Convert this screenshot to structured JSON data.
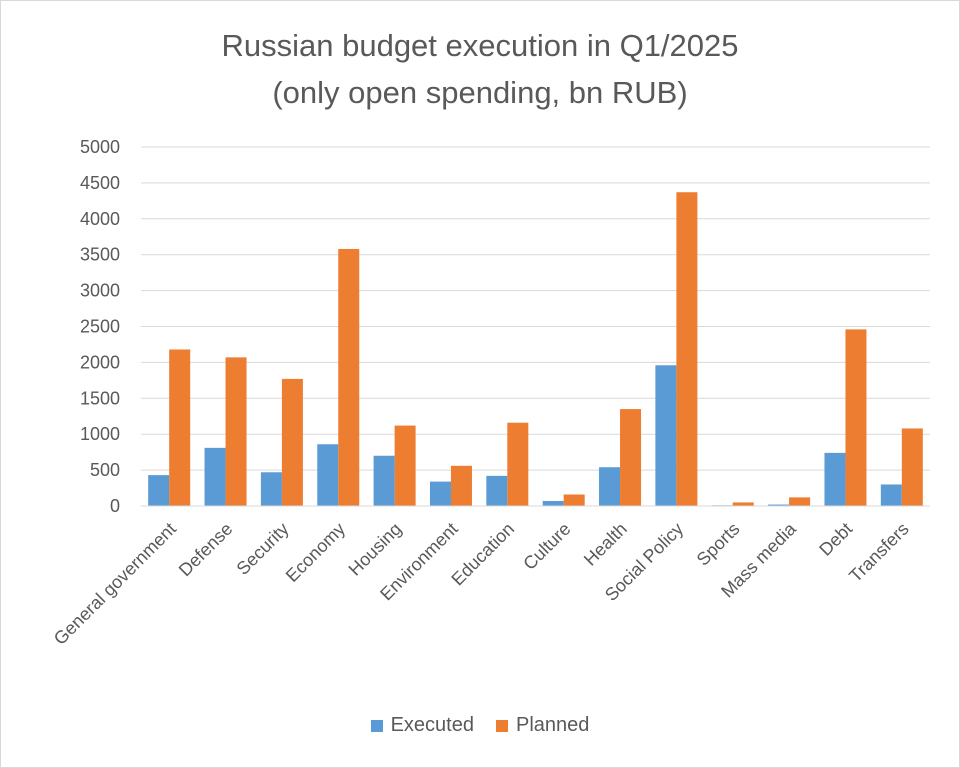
{
  "chart_data": {
    "type": "bar",
    "title_line1": "Russian budget execution in Q1/2025",
    "title_line2": "(only open spending, bn RUB)",
    "categories": [
      "General government",
      "Defense",
      "Security",
      "Economy",
      "Housing",
      "Environment",
      "Education",
      "Culture",
      "Health",
      "Social Policy",
      "Sports",
      "Mass media",
      "Debt",
      "Transfers"
    ],
    "series": [
      {
        "name": "Executed",
        "color": "#5B9BD5",
        "values": [
          430,
          810,
          470,
          860,
          700,
          340,
          420,
          70,
          540,
          1960,
          10,
          20,
          740,
          300
        ]
      },
      {
        "name": "Planned",
        "color": "#ED7D31",
        "values": [
          2180,
          2070,
          1770,
          3580,
          1120,
          560,
          1160,
          160,
          1350,
          4370,
          50,
          120,
          2460,
          1080
        ]
      }
    ],
    "ylim": [
      0,
      5000
    ],
    "yticks": [
      "0",
      "500",
      "1000",
      "1500",
      "2000",
      "2500",
      "3000",
      "3500",
      "4000",
      "4500",
      "5000"
    ],
    "ytick_values": [
      0,
      500,
      1000,
      1500,
      2000,
      2500,
      3000,
      3500,
      4000,
      4500,
      5000
    ],
    "grid": true,
    "legend_position": "bottom"
  }
}
